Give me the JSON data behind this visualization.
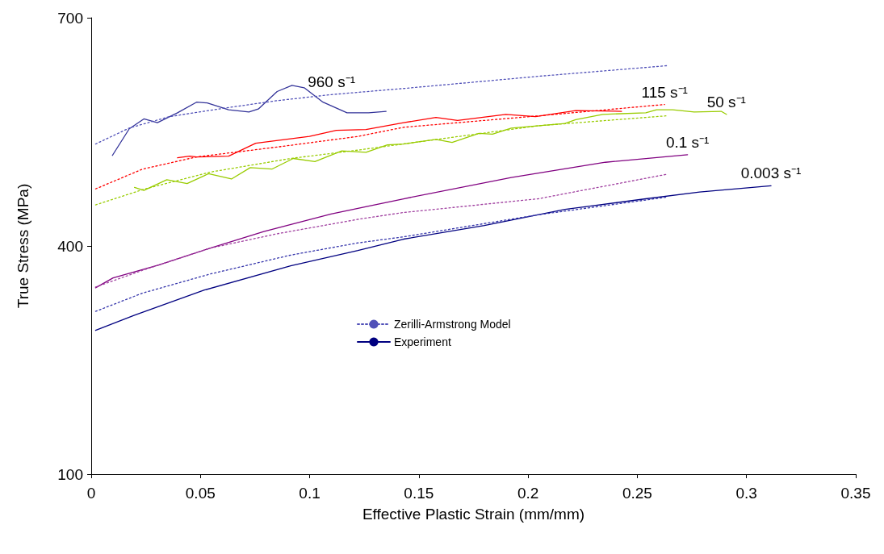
{
  "chart_data": {
    "type": "line",
    "xlabel": "Effective Plastic Strain (mm/mm)",
    "ylabel": "True Stress (MPa)",
    "xlim": [
      0,
      0.35
    ],
    "xticks": [
      0,
      0.05,
      0.1,
      0.15,
      0.2,
      0.25,
      0.3,
      0.35
    ],
    "ylim": [
      100,
      700
    ],
    "yticks": [
      100,
      400,
      700
    ],
    "grid": false,
    "legend": "center",
    "marker": "none",
    "series": [
      {
        "color": "#333399",
        "line_style": "solid",
        "x": [
          0.0097,
          0.0174,
          0.0241,
          0.0303,
          0.0395,
          0.0482,
          0.0531,
          0.0629,
          0.0722,
          0.0765,
          0.0851,
          0.0919,
          0.0975,
          0.1061,
          0.1171,
          0.127,
          0.135
        ],
        "values": [
          519,
          554,
          567,
          562,
          575,
          589,
          588,
          579,
          576,
          580,
          603,
          611,
          608,
          589,
          575,
          575,
          577
        ]
      },
      {
        "name": "Zerilli-Armstrong Model",
        "color": "#5050b8",
        "line_style": "dotted",
        "x": [
          0.002,
          0.0174,
          0.0358,
          0.0605,
          0.0851,
          0.11,
          0.143,
          0.2046,
          0.2637
        ],
        "values": [
          534,
          555,
          570,
          581,
          591,
          599,
          607,
          623,
          637
        ]
      },
      {
        "color": "#ff0000",
        "line_style": "solid",
        "x": [
          0.0395,
          0.0451,
          0.0482,
          0.0629,
          0.0753,
          0.0999,
          0.1122,
          0.1258,
          0.143,
          0.1578,
          0.1677,
          0.1898,
          0.2034,
          0.2218,
          0.2428
        ],
        "values": [
          516,
          518,
          517,
          518,
          535,
          544,
          552,
          553,
          562,
          569,
          565,
          573,
          570,
          578,
          577
        ]
      },
      {
        "color": "#ff0000",
        "line_style": "dotted",
        "x": [
          0.002,
          0.0235,
          0.0482,
          0.0851,
          0.1221,
          0.143,
          0.2046,
          0.2625
        ],
        "values": [
          475,
          501,
          517,
          530,
          544,
          556,
          571,
          586
        ]
      },
      {
        "color": "#99cc00",
        "line_style": "solid",
        "x": [
          0.0198,
          0.0241,
          0.0346,
          0.0439,
          0.0537,
          0.0642,
          0.0728,
          0.0827,
          0.0925,
          0.1024,
          0.1147,
          0.1258,
          0.1356,
          0.143,
          0.1578,
          0.1652,
          0.1775,
          0.1837,
          0.1923,
          0.2169,
          0.2218,
          0.2342,
          0.2539,
          0.2588,
          0.2662,
          0.276,
          0.2884,
          0.2908
        ],
        "values": [
          477,
          473,
          487,
          482,
          495,
          488,
          503,
          501,
          515,
          511,
          525,
          523,
          533,
          534,
          540,
          536,
          548,
          547,
          555,
          561,
          566,
          573,
          575,
          579,
          579,
          576,
          577,
          573
        ]
      },
      {
        "color": "#99cc00",
        "line_style": "dotted",
        "x": [
          0.002,
          0.0235,
          0.0543,
          0.0913,
          0.1221,
          0.1529,
          0.2046,
          0.2631
        ],
        "values": [
          454,
          474,
          497,
          515,
          526,
          538,
          558,
          571
        ]
      },
      {
        "color": "#800080",
        "line_style": "solid",
        "x": [
          0.002,
          0.01,
          0.0309,
          0.0543,
          0.079,
          0.1098,
          0.143,
          0.1923,
          0.2354,
          0.273
        ],
        "values": [
          345,
          358,
          375,
          397,
          419,
          442,
          462,
          490,
          510,
          520
        ]
      },
      {
        "color": "#a040a0",
        "line_style": "dotted",
        "x": [
          0.002,
          0.0235,
          0.0543,
          0.0851,
          0.1221,
          0.143,
          0.2046,
          0.2631
        ],
        "values": [
          346,
          368,
          397,
          416,
          435,
          444,
          462,
          494
        ]
      },
      {
        "name": "Experiment",
        "color": "#000080",
        "line_style": "solid",
        "x": [
          0.002,
          0.0198,
          0.0518,
          0.0913,
          0.1221,
          0.143,
          0.18,
          0.2169,
          0.2539,
          0.2785,
          0.3112
        ],
        "values": [
          289,
          309,
          342,
          374,
          394,
          409,
          427,
          448,
          462,
          471,
          479
        ]
      },
      {
        "color": "#3333aa",
        "line_style": "dotted",
        "x": [
          0.002,
          0.0235,
          0.0543,
          0.0913,
          0.1221,
          0.143,
          0.2046,
          0.2631
        ],
        "values": [
          314,
          338,
          363,
          388,
          404,
          412,
          441,
          464
        ]
      }
    ],
    "annotations": [
      {
        "text": "960 s⁻¹",
        "x": 0.11,
        "y": 599
      },
      {
        "text": "115 s⁻¹",
        "x": 0.2625,
        "y": 586
      },
      {
        "text": "50 s⁻¹",
        "x": 0.2908,
        "y": 573
      },
      {
        "text": "0.1 s⁻¹",
        "x": 0.273,
        "y": 520
      },
      {
        "text": "0.003 s⁻¹",
        "x": 0.3112,
        "y": 479
      }
    ]
  }
}
